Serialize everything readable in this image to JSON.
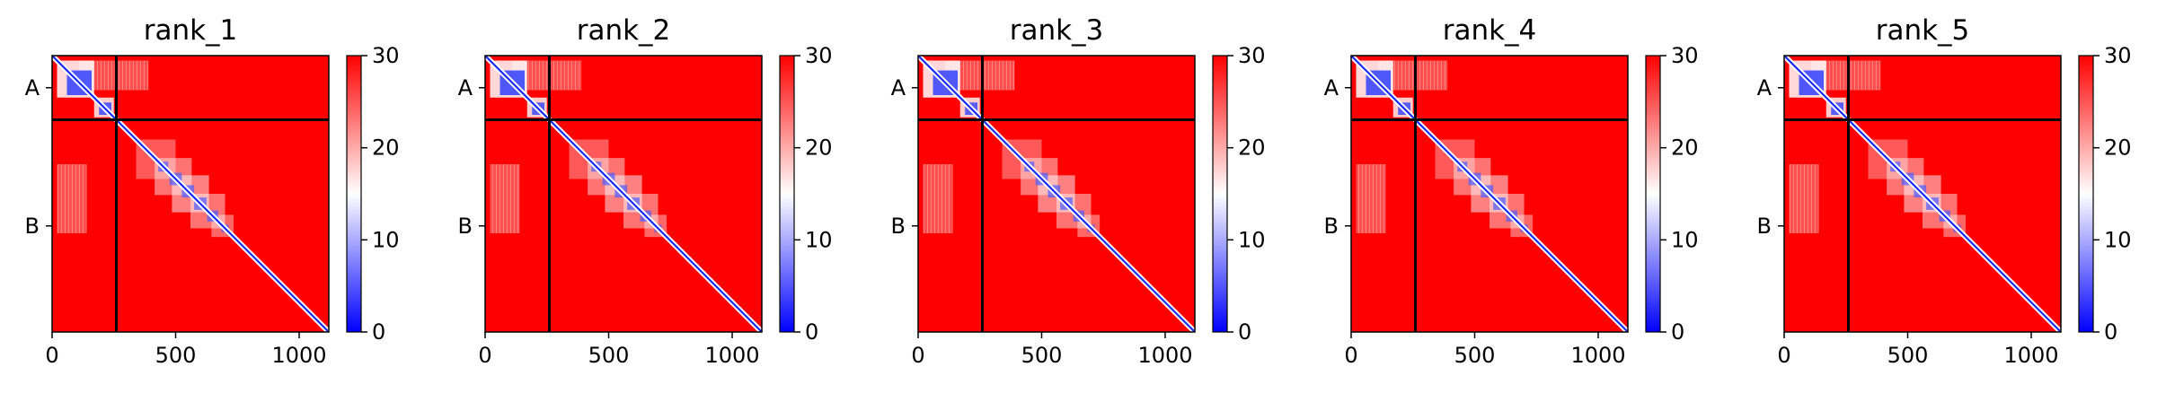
{
  "chart_data": {
    "type": "heatmap",
    "colormap": [
      "#0000ff",
      "#ffffff",
      "#ff0000"
    ],
    "color_range": [
      0,
      30
    ],
    "colorbar_ticks": [
      "0",
      "10",
      "20",
      "30"
    ],
    "x_ticks": [
      "0",
      "500",
      "1000"
    ],
    "x_tick_values": [
      0,
      500,
      1000
    ],
    "x_range": [
      0,
      1120
    ],
    "y_labels": [
      "A",
      "B"
    ],
    "chain_boundary": 260,
    "panels": [
      {
        "title": "rank_1"
      },
      {
        "title": "rank_2"
      },
      {
        "title": "rank_3"
      },
      {
        "title": "rank_4"
      },
      {
        "title": "rank_5"
      }
    ]
  }
}
